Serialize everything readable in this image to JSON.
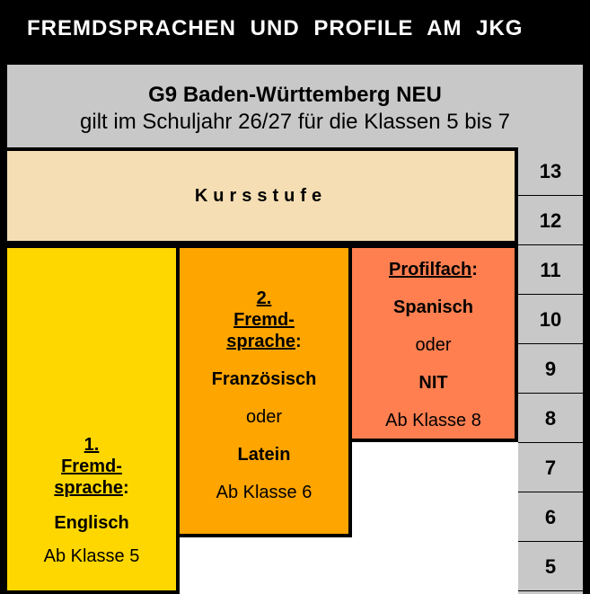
{
  "page": {
    "title": "FREMDSPRACHEN UND PROFILE AM JKG"
  },
  "header": {
    "title": "G9 Baden-Württemberg NEU",
    "subtitle": "gilt im Schuljahr 26/27 für die Klassen 5 bis 7"
  },
  "kursstufe": {
    "label": "Kursstufe"
  },
  "grades": [
    "13",
    "12",
    "11",
    "10",
    "9",
    "8",
    "7",
    "6",
    "5"
  ],
  "first_language": {
    "number": "1.",
    "label_line1": "Fremd-",
    "label_line2": "sprache",
    "colon": ":",
    "subject": "Englisch",
    "start": "Ab Klasse 5"
  },
  "second_language": {
    "number": "2.",
    "label_line1": "Fremd-",
    "label_line2": "sprache",
    "colon": ":",
    "option1": "Französisch",
    "connector": "oder",
    "option2": "Latein",
    "start": "Ab Klasse 6"
  },
  "profile": {
    "label": "Profilfach",
    "colon": ":",
    "option1": "Spanisch",
    "connector": "oder",
    "option2": "NIT",
    "start": "Ab Klasse 8"
  },
  "colors": {
    "first_language": "#ffd700",
    "second_language": "#ffa500",
    "profile": "#ff7f50",
    "kursstufe": "#f5deb3",
    "header": "#c8c8c8"
  }
}
